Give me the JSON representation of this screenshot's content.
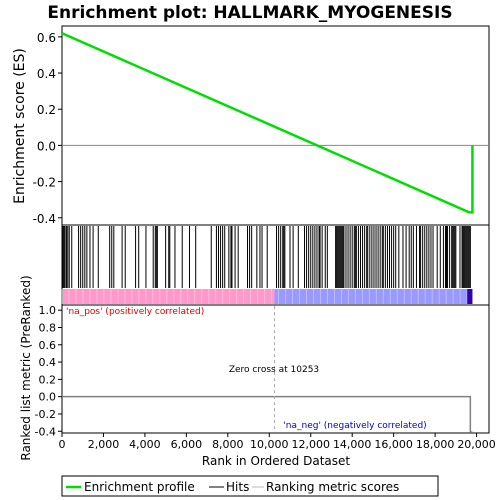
{
  "chart_data": {
    "type": "line",
    "title": "Enrichment plot: HALLMARK_MYOGENESIS",
    "n_genes": 19800,
    "es_panel": {
      "ylabel": "Enrichment score (ES)",
      "ylim": [
        -0.44,
        0.66
      ],
      "yticks": [
        -0.4,
        -0.2,
        0.0,
        0.2,
        0.4,
        0.6
      ],
      "ytick_labels": [
        "-0.4",
        "-0.2",
        "0.0",
        "0.2",
        "0.4",
        "0.6"
      ],
      "series": [
        {
          "name": "Enrichment profile",
          "x": [
            0,
            19650,
            19800,
            19800
          ],
          "y": [
            0.62,
            -0.37,
            -0.37,
            0.0
          ]
        }
      ]
    },
    "hits_panel": {
      "hits": [
        50,
        100,
        150,
        220,
        280,
        350,
        470,
        800,
        900,
        1000,
        1100,
        1200,
        1350,
        1500,
        1750,
        2300,
        2400,
        2500,
        2900,
        3050,
        3550,
        3700,
        4050,
        4400,
        4500,
        4550,
        4600,
        5000,
        5150,
        5200,
        5450,
        5800,
        6150,
        6450,
        7200,
        7450,
        7550,
        7650,
        7750,
        7850,
        8050,
        8150,
        8200,
        8350,
        8500,
        8950,
        9050,
        9150,
        9400,
        9550,
        9650,
        9900,
        10350,
        10450,
        10550,
        10650,
        10700,
        10750,
        11000,
        11150,
        11400,
        11700,
        11800,
        11900,
        12000,
        12100,
        12200,
        12300,
        12400,
        12450,
        12550,
        12700,
        12800,
        13200,
        13250,
        13300,
        13350,
        13400,
        13450,
        13500,
        13550,
        13600,
        13700,
        13800,
        13900,
        14000,
        14100,
        14150,
        14200,
        14300,
        14400,
        14500,
        14600,
        14700,
        14750,
        14850,
        14950,
        15050,
        15150,
        15250,
        15350,
        15450,
        15500,
        15600,
        15700,
        15800,
        15900,
        16000,
        16100,
        16250,
        16450,
        16600,
        16750,
        16850,
        16950,
        17100,
        17250,
        17300,
        17400,
        17500,
        17600,
        17700,
        17800,
        17900,
        18100,
        18250,
        18400,
        18500,
        18550,
        18600,
        18700,
        18800,
        18850,
        18900,
        18950,
        19000,
        19200,
        19300,
        19350,
        19400,
        19450,
        19500,
        19550,
        19600,
        19650,
        19700
      ]
    },
    "metric_panel": {
      "ylabel": "Ranked list metric (PreRanked)",
      "xlabel": "Rank in Ordered Dataset",
      "ylim": [
        -0.42,
        1.06
      ],
      "yticks": [
        -0.4,
        -0.2,
        0.0,
        0.2,
        0.4,
        0.6,
        0.8,
        1.0
      ],
      "ytick_labels": [
        "-0.4",
        "-0.2",
        "0.0",
        "0.2",
        "0.4",
        "0.6",
        "0.8",
        "1.0"
      ],
      "xlim": [
        0,
        20600
      ],
      "xticks": [
        0,
        2000,
        4000,
        6000,
        8000,
        10000,
        12000,
        14000,
        16000,
        18000,
        20000
      ],
      "xtick_labels": [
        "0",
        "2,000",
        "4,000",
        "6,000",
        "8,000",
        "10,000",
        "12,000",
        "14,000",
        "16,000",
        "18,000",
        "20,000"
      ],
      "zero_cross": 10253,
      "metric_curve": {
        "x": [
          0,
          19600,
          19700,
          19700,
          19800
        ],
        "y": [
          0.0,
          0.0,
          0.0,
          -0.41,
          -0.41
        ]
      },
      "na_pos_label": "'na_pos' (positively correlated)",
      "na_neg_label": "'na_neg' (negatively correlated)",
      "zero_cross_label": "Zero cross at 10253"
    },
    "legend": {
      "placement": "bottom",
      "items": [
        "Enrichment profile",
        "Hits",
        "Ranking metric scores"
      ]
    },
    "colors": {
      "profile": "#00dd00",
      "pos_band": "#ff99cc",
      "neg_band": "#9999ff",
      "na_pos_text": "#dd0000",
      "na_neg_text": "#0000cc",
      "metric_line": "#808080"
    }
  }
}
